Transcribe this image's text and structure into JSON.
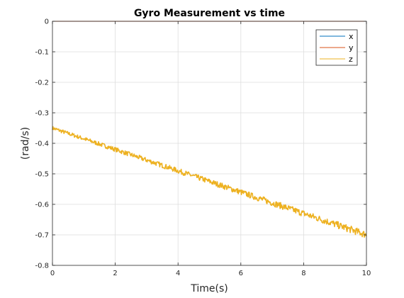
{
  "chart_data": {
    "type": "line",
    "title": "Gyro Measurement vs time",
    "xlabel": "Time(s)",
    "ylabel": "(rad/s)",
    "xlim": [
      0,
      10
    ],
    "ylim": [
      -0.8,
      0
    ],
    "xticks": [
      0,
      2,
      4,
      6,
      8,
      10
    ],
    "yticks": [
      0,
      -0.1,
      -0.2,
      -0.3,
      -0.4,
      -0.5,
      -0.6,
      -0.7,
      -0.8
    ],
    "xtick_labels": [
      "0",
      "2",
      "4",
      "6",
      "8",
      "10"
    ],
    "ytick_labels": [
      "0",
      "-0.1",
      "-0.2",
      "-0.3",
      "-0.4",
      "-0.5",
      "-0.6",
      "-0.7",
      "-0.8"
    ],
    "grid": true,
    "legend_position": "top-right",
    "series": [
      {
        "name": "x",
        "color": "#0072BD",
        "x": [
          0,
          10
        ],
        "y": [
          0,
          0
        ],
        "noise": 0
      },
      {
        "name": "y",
        "color": "#D95319",
        "x": [
          0,
          10
        ],
        "y": [
          0,
          0
        ],
        "noise": 0
      },
      {
        "name": "z",
        "color": "#EDB120",
        "x": [
          0,
          10
        ],
        "y": [
          -0.35,
          -0.7
        ],
        "noise": 0.01
      }
    ]
  }
}
